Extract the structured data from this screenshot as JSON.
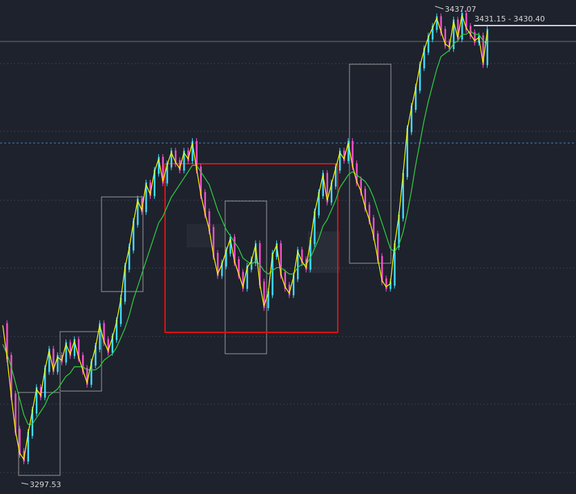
{
  "chart_data": {
    "type": "candlestick-line",
    "title": "",
    "xlabel": "",
    "ylabel": "",
    "ylim": [
      3290,
      3440
    ],
    "grid": true,
    "colors": {
      "background": "#1e222d",
      "grid": "#3a4052",
      "price_line": "#ffff00",
      "ma_line": "#2ecc40",
      "candle_up": "#40e0ff",
      "candle_down": "#ff4fd0",
      "highlight_box": "#e01010",
      "range_box": "#9a9a9a",
      "reference_line": "#3f86c9"
    },
    "annotations": {
      "high_label": "3437.07",
      "low_label": "3297.53",
      "current_label": "3431.15 - 3430.40"
    },
    "reference_level": 3397,
    "series": [
      {
        "values": [
          3340,
          3330,
          3318,
          3307,
          3300,
          3298,
          3306,
          3313,
          3320,
          3318,
          3326,
          3332,
          3326,
          3330,
          3329,
          3334,
          3331,
          3335,
          3330,
          3326,
          3322,
          3328,
          3333,
          3340,
          3335,
          3332,
          3336,
          3341,
          3348,
          3358,
          3364,
          3372,
          3379,
          3376,
          3384,
          3381,
          3388,
          3392,
          3385,
          3390,
          3394,
          3391,
          3389,
          3394,
          3392,
          3397,
          3389,
          3381,
          3375,
          3370,
          3362,
          3356,
          3359,
          3363,
          3367,
          3360,
          3356,
          3352,
          3358,
          3360,
          3365,
          3353,
          3346,
          3350,
          3362,
          3365,
          3356,
          3352,
          3350,
          3355,
          3363,
          3360,
          3358,
          3366,
          3375,
          3381,
          3387,
          3379,
          3384,
          3389,
          3394,
          3392,
          3397,
          3390,
          3385,
          3382,
          3377,
          3373,
          3368,
          3361,
          3354,
          3352,
          3353,
          3365,
          3374,
          3387,
          3401,
          3408,
          3414,
          3421,
          3426,
          3430,
          3433,
          3436,
          3432,
          3428,
          3427,
          3435,
          3430,
          3437,
          3433,
          3431,
          3429,
          3430,
          3422,
          3432
        ]
      },
      {
        "values": [
          3334,
          3331,
          3327,
          3322,
          3317,
          3312,
          3309,
          3309,
          3311,
          3313,
          3315,
          3318,
          3319,
          3320,
          3322,
          3324,
          3325,
          3327,
          3327,
          3327,
          3326,
          3326,
          3326,
          3327,
          3329,
          3330,
          3331,
          3333,
          3336,
          3339,
          3343,
          3348,
          3352,
          3356,
          3360,
          3364,
          3368,
          3372,
          3374,
          3377,
          3380,
          3382,
          3384,
          3386,
          3388,
          3390,
          3390,
          3388,
          3386,
          3384,
          3380,
          3376,
          3373,
          3370,
          3368,
          3366,
          3364,
          3361,
          3360,
          3359,
          3360,
          3359,
          3357,
          3356,
          3357,
          3358,
          3358,
          3357,
          3356,
          3356,
          3358,
          3359,
          3359,
          3361,
          3364,
          3367,
          3371,
          3373,
          3376,
          3379,
          3383,
          3385,
          3387,
          3388,
          3387,
          3386,
          3385,
          3383,
          3380,
          3376,
          3372,
          3368,
          3364,
          3363,
          3365,
          3369,
          3375,
          3382,
          3390,
          3397,
          3404,
          3410,
          3415,
          3420,
          3424,
          3425,
          3426,
          3428,
          3429,
          3431,
          3431,
          3432,
          3431,
          3431,
          3429,
          3428
        ]
      }
    ]
  }
}
